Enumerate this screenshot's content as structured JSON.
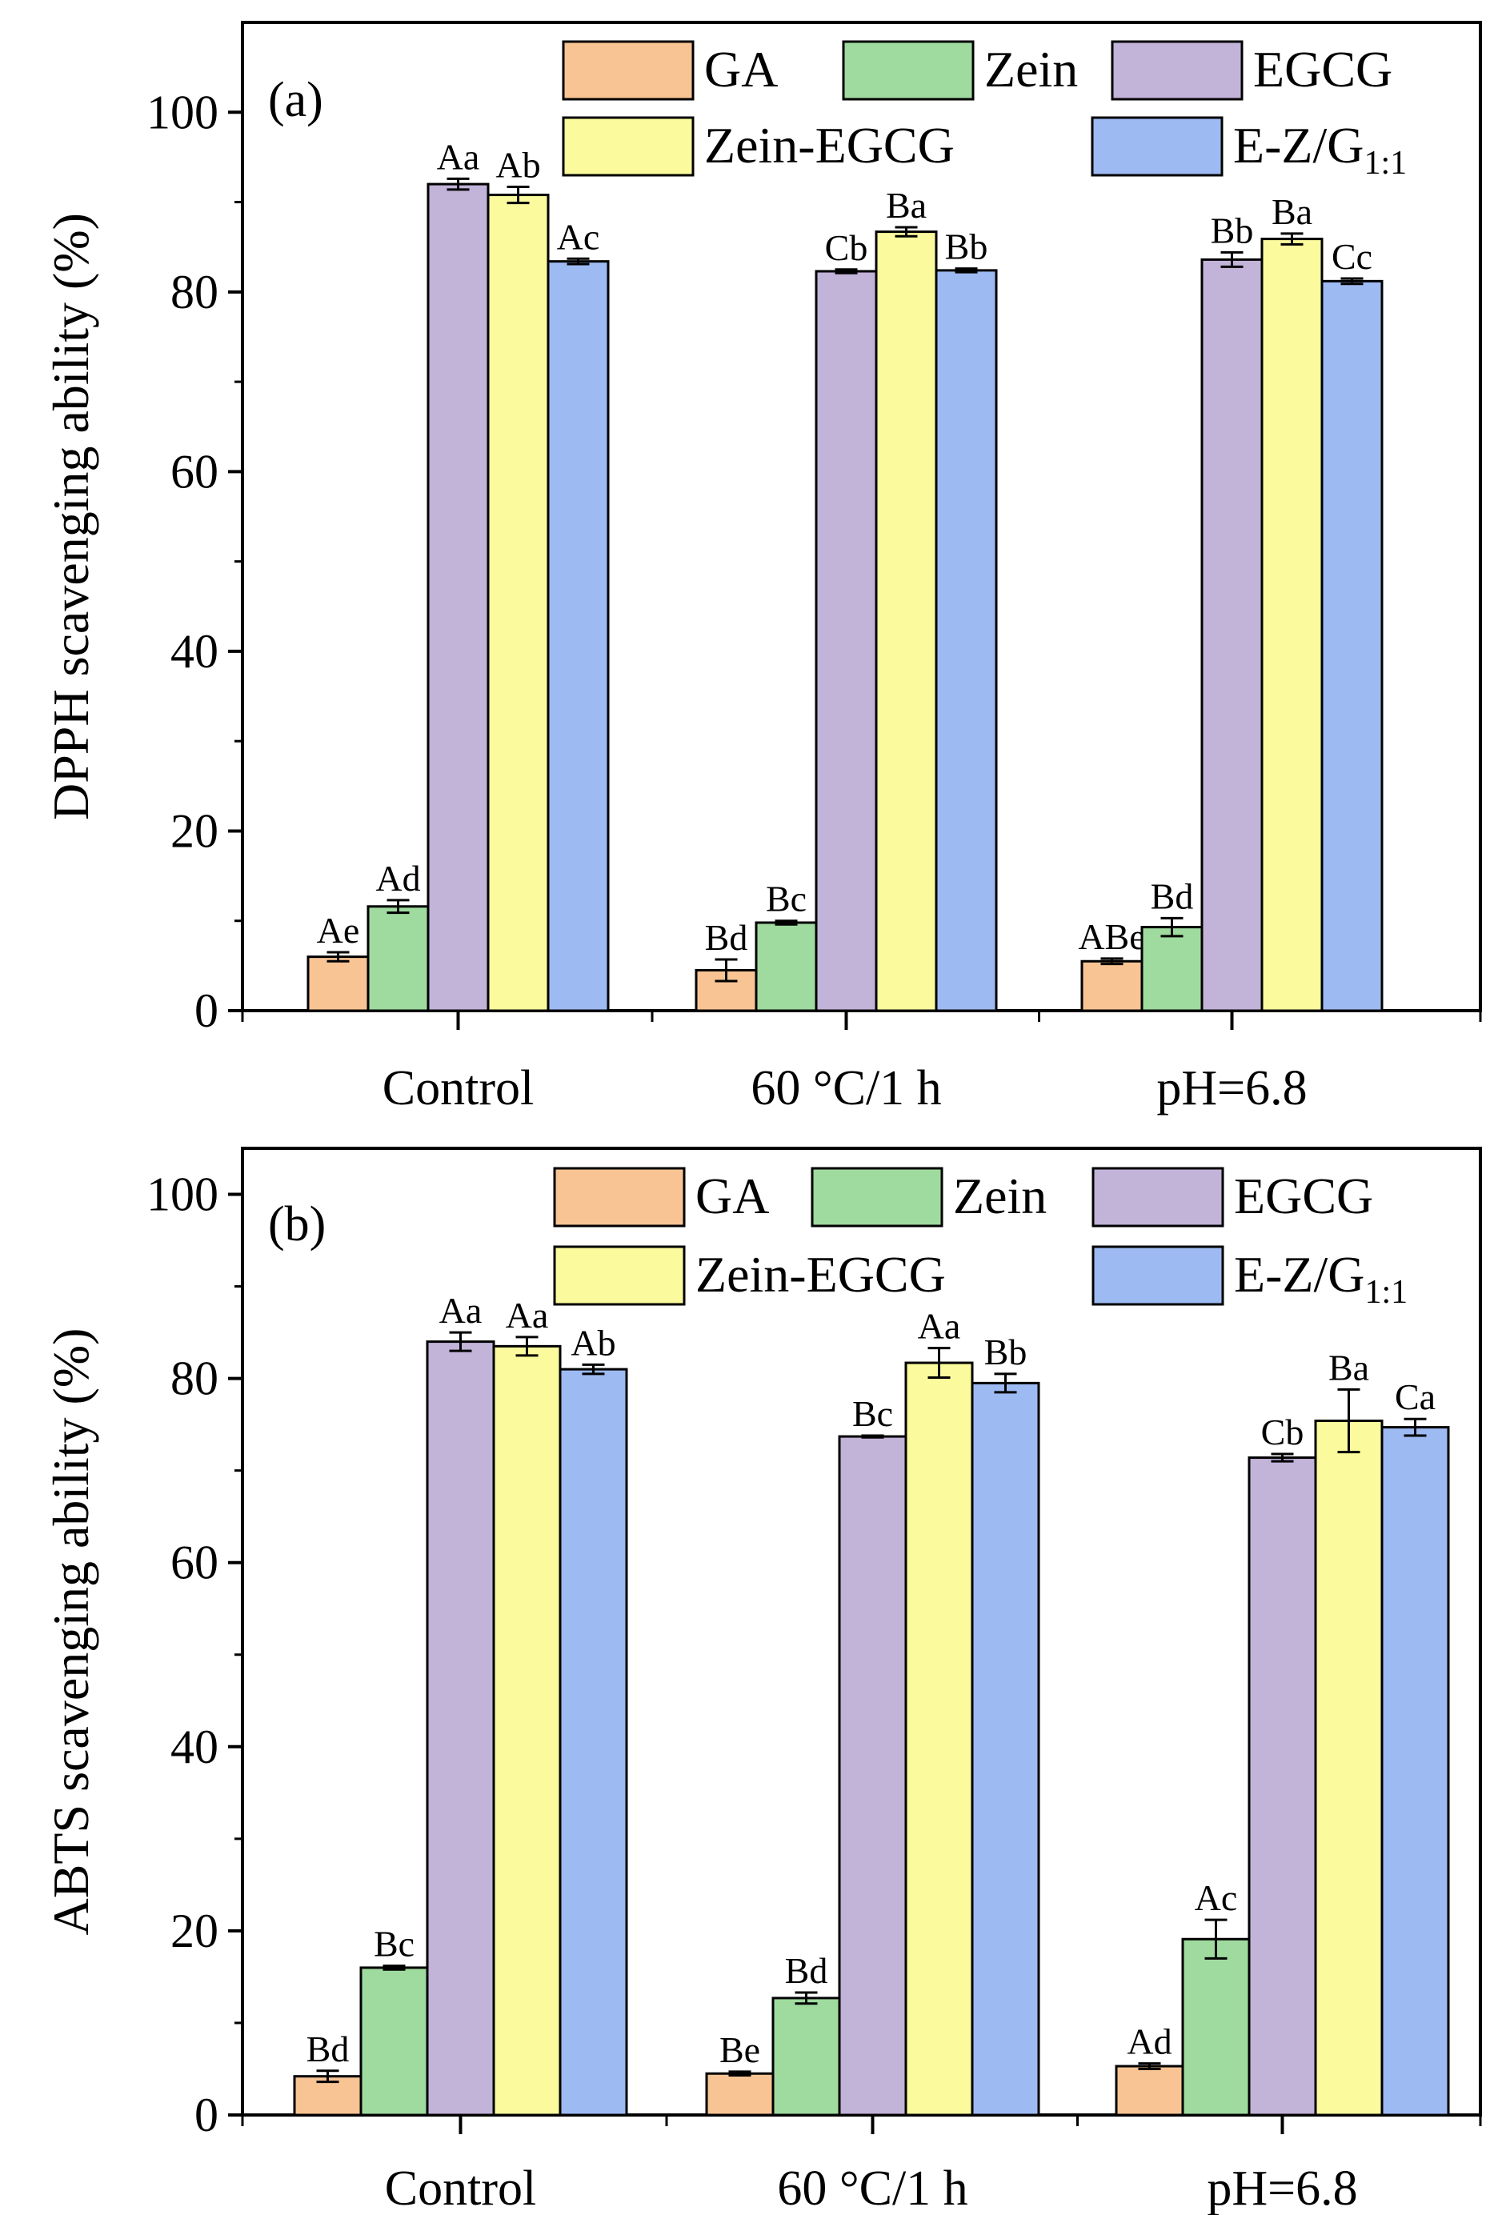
{
  "colors": {
    "GA": "#f9c494",
    "Zein": "#9fdb9f",
    "EGCG": "#c2b3d9",
    "Zein-EGCG": "#fbfb9e",
    "E-Z/G1:1": "#9ebaf2"
  },
  "chart_data": [
    {
      "type": "bar",
      "panel_label": "(a)",
      "ylabel": "DPPH scavenging ability (%)",
      "ylim": [
        0,
        110
      ],
      "yticks": [
        0,
        20,
        40,
        60,
        80,
        100
      ],
      "categories": [
        "Control",
        "60 °C/1 h",
        "pH=6.8"
      ],
      "legend": [
        {
          "name": "GA",
          "text": "GA",
          "sub": ""
        },
        {
          "name": "Zein",
          "text": "Zein",
          "sub": ""
        },
        {
          "name": "EGCG",
          "text": "EGCG",
          "sub": ""
        },
        {
          "name": "Zein-EGCG",
          "text": "Zein-EGCG",
          "sub": ""
        },
        {
          "name": "E-Z/G1:1",
          "text": "E-Z/G",
          "sub": "1:1"
        }
      ],
      "series": [
        {
          "name": "GA",
          "values": [
            6.0,
            4.5,
            5.5
          ],
          "errors": [
            0.5,
            1.2,
            0.3
          ],
          "labels": [
            "Ae",
            "Bd",
            "ABe"
          ]
        },
        {
          "name": "Zein",
          "values": [
            11.6,
            9.8,
            9.3
          ],
          "errors": [
            0.7,
            0.2,
            1.0
          ],
          "labels": [
            "Ad",
            "Bc",
            "Bd"
          ]
        },
        {
          "name": "EGCG",
          "values": [
            92.0,
            82.3,
            83.6
          ],
          "errors": [
            0.6,
            0.2,
            0.8
          ],
          "labels": [
            "Aa",
            "Cb",
            "Bb"
          ]
        },
        {
          "name": "Zein-EGCG",
          "values": [
            90.8,
            86.7,
            85.9
          ],
          "errors": [
            0.9,
            0.5,
            0.6
          ],
          "labels": [
            "Ab",
            "Ba",
            "Ba"
          ]
        },
        {
          "name": "E-Z/G1:1",
          "values": [
            83.4,
            82.4,
            81.2
          ],
          "errors": [
            0.3,
            0.2,
            0.3
          ],
          "labels": [
            "Ac",
            "Bb",
            "Cc"
          ]
        }
      ]
    },
    {
      "type": "bar",
      "panel_label": "(b)",
      "ylabel": "ABTS scavenging ability (%)",
      "ylim": [
        0,
        105
      ],
      "yticks": [
        0,
        20,
        40,
        60,
        80,
        100
      ],
      "categories": [
        "Control",
        "60 °C/1 h",
        "pH=6.8"
      ],
      "legend": [
        {
          "name": "GA",
          "text": "GA",
          "sub": ""
        },
        {
          "name": "Zein",
          "text": "Zein",
          "sub": ""
        },
        {
          "name": "EGCG",
          "text": "EGCG",
          "sub": ""
        },
        {
          "name": "Zein-EGCG",
          "text": "Zein-EGCG",
          "sub": ""
        },
        {
          "name": "E-Z/G1:1",
          "text": "E-Z/G",
          "sub": "1:1"
        }
      ],
      "series": [
        {
          "name": "GA",
          "values": [
            4.2,
            4.5,
            5.3
          ],
          "errors": [
            0.6,
            0.2,
            0.3
          ],
          "labels": [
            "Bd",
            "Be",
            "Ad"
          ]
        },
        {
          "name": "Zein",
          "values": [
            16.0,
            12.7,
            19.1
          ],
          "errors": [
            0.2,
            0.6,
            2.1
          ],
          "labels": [
            "Bc",
            "Bd",
            "Ac"
          ]
        },
        {
          "name": "EGCG",
          "values": [
            84.0,
            73.7,
            71.4
          ],
          "errors": [
            1.0,
            0.1,
            0.4
          ],
          "labels": [
            "Aa",
            "Bc",
            "Cb"
          ]
        },
        {
          "name": "Zein-EGCG",
          "values": [
            83.5,
            81.7,
            75.4
          ],
          "errors": [
            1.0,
            1.6,
            3.4
          ],
          "labels": [
            "Aa",
            "Aa",
            "Ba"
          ]
        },
        {
          "name": "E-Z/G1:1",
          "values": [
            81.0,
            79.5,
            74.7
          ],
          "errors": [
            0.5,
            1.0,
            0.9
          ],
          "labels": [
            "Ab",
            "Bb",
            "Ca"
          ]
        }
      ]
    }
  ]
}
